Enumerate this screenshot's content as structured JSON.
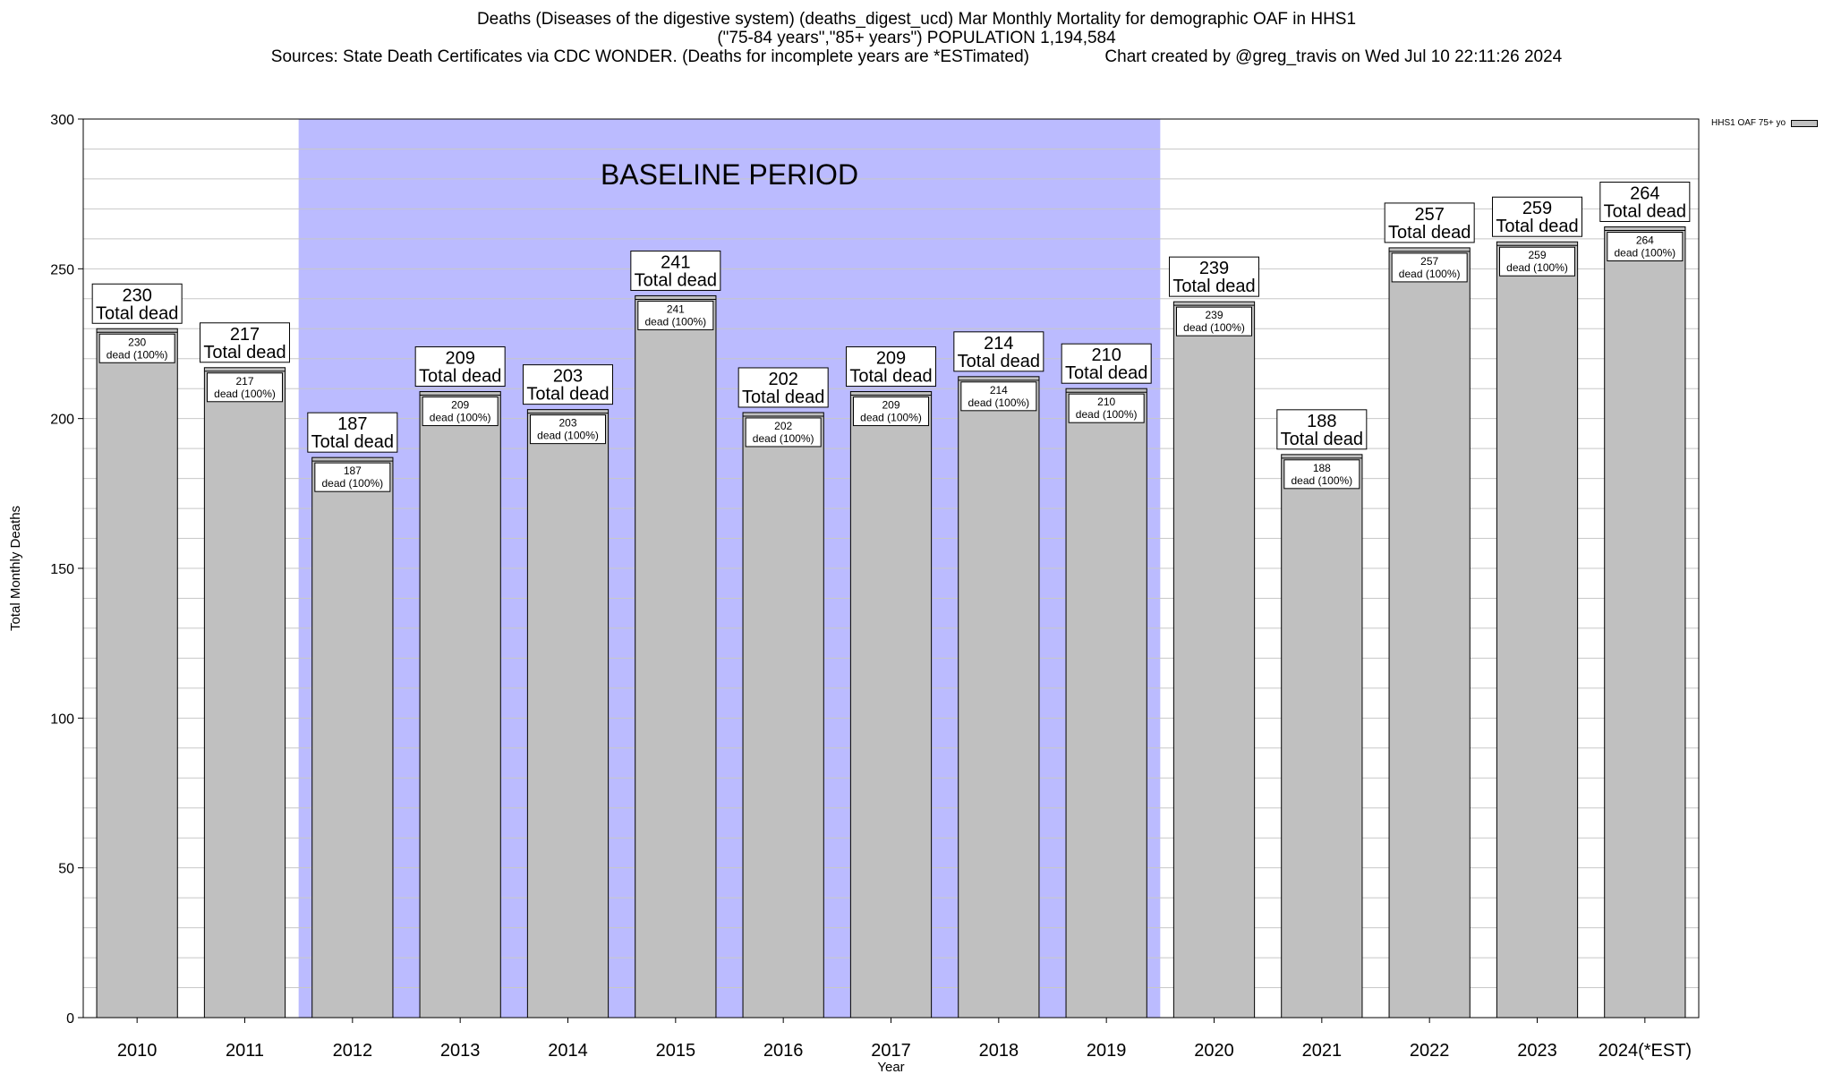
{
  "title": {
    "line1": "Deaths (Diseases of the digestive system) (deaths_digest_ucd) Mar Monthly Mortality for demographic OAF in HHS1",
    "line2": "(\"75-84 years\",\"85+ years\") POPULATION 1,194,584",
    "line3": "Sources: State Death Certificates via CDC WONDER. (Deaths for incomplete years are *ESTimated)                Chart created by @greg_travis on Wed Jul 10 22:11:26 2024"
  },
  "legend": {
    "label": "HHS1 OAF 75+ yo"
  },
  "colors": {
    "bar": "#c0c0c0",
    "baseline": "#bbbbff",
    "grid": "#c8c8c8"
  },
  "chart_data": {
    "type": "bar",
    "title": "Deaths (Diseases of the digestive system) (deaths_digest_ucd) Mar Monthly Mortality for demographic OAF in HHS1",
    "xlabel": "Year",
    "ylabel": "Total Monthly Deaths",
    "ylim": [
      0,
      300
    ],
    "yticks": [
      0,
      50,
      100,
      150,
      200,
      250,
      300
    ],
    "grid": true,
    "legend_position": "top-right",
    "categories": [
      "2010",
      "2011",
      "2012",
      "2013",
      "2014",
      "2015",
      "2016",
      "2017",
      "2018",
      "2019",
      "2020",
      "2021",
      "2022",
      "2023",
      "2024(*EST)"
    ],
    "series": [
      {
        "name": "HHS1 OAF 75+ yo",
        "values": [
          230,
          217,
          187,
          209,
          203,
          241,
          202,
          209,
          214,
          210,
          239,
          188,
          257,
          259,
          264
        ]
      }
    ],
    "label_outer_suffix": "Total dead",
    "label_inner_suffix": "dead (100%)",
    "annotation": {
      "text": "BASELINE PERIOD",
      "start": "2012",
      "end": "2019"
    }
  }
}
